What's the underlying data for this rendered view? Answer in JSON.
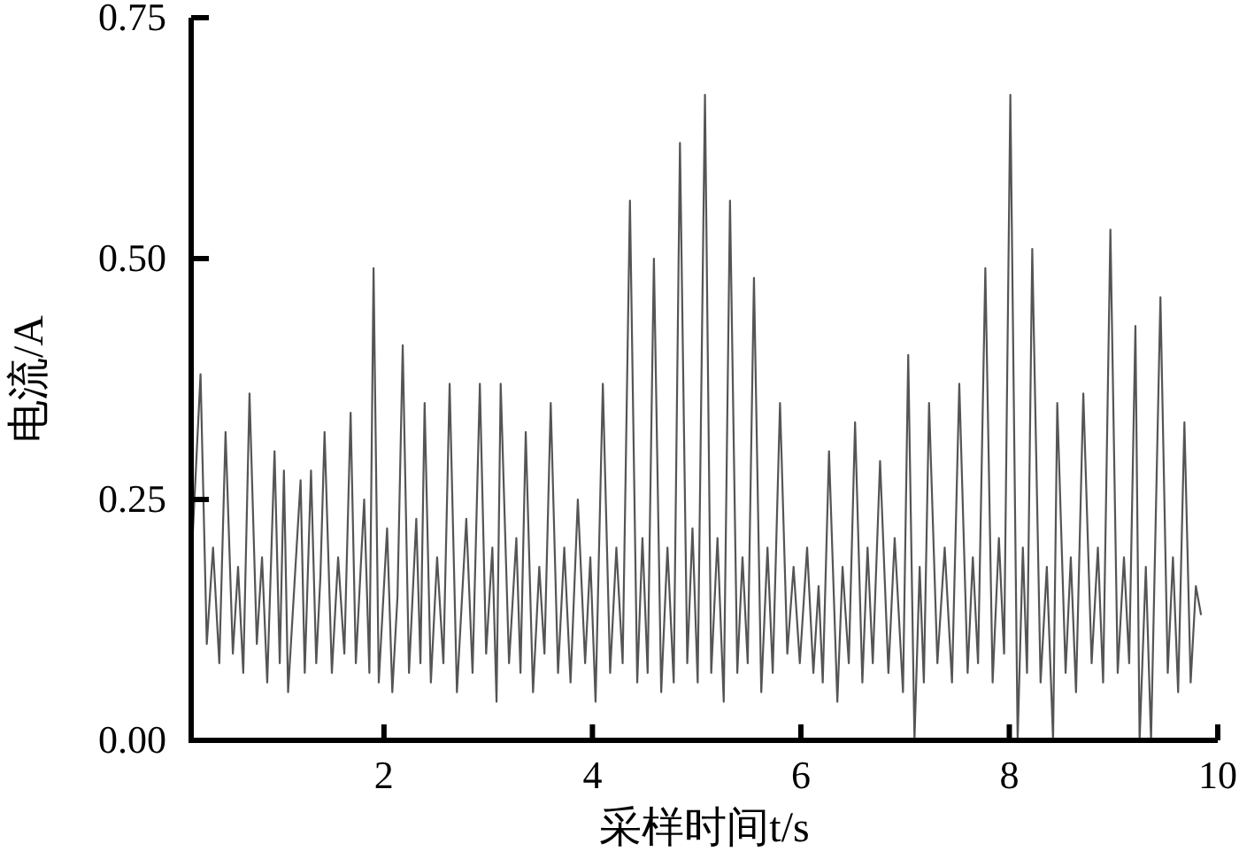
{
  "chart_data": {
    "type": "line",
    "xlabel": "采样时间t/s",
    "ylabel": "电流/A",
    "xlim": [
      0.15,
      10
    ],
    "ylim": [
      0,
      0.75
    ],
    "xticks": [
      2,
      4,
      6,
      8,
      10
    ],
    "yticks": [
      {
        "value": 0,
        "label": "0.00"
      },
      {
        "value": 0.25,
        "label": "0.25"
      },
      {
        "value": 0.5,
        "label": "0.50"
      },
      {
        "value": 0.75,
        "label": "0.75"
      }
    ],
    "x": [
      0.15,
      0.24,
      0.3,
      0.36,
      0.42,
      0.48,
      0.55,
      0.6,
      0.65,
      0.71,
      0.78,
      0.83,
      0.88,
      0.95,
      1.0,
      1.04,
      1.08,
      1.14,
      1.2,
      1.24,
      1.3,
      1.35,
      1.39,
      1.43,
      1.5,
      1.56,
      1.62,
      1.68,
      1.73,
      1.81,
      1.86,
      1.9,
      1.95,
      2.03,
      2.08,
      2.13,
      2.18,
      2.24,
      2.31,
      2.35,
      2.39,
      2.45,
      2.51,
      2.57,
      2.63,
      2.7,
      2.79,
      2.85,
      2.92,
      2.98,
      3.04,
      3.08,
      3.12,
      3.2,
      3.27,
      3.31,
      3.36,
      3.43,
      3.49,
      3.54,
      3.6,
      3.67,
      3.73,
      3.79,
      3.86,
      3.93,
      3.98,
      4.03,
      4.1,
      4.17,
      4.23,
      4.29,
      4.36,
      4.43,
      4.48,
      4.53,
      4.59,
      4.66,
      4.72,
      4.78,
      4.84,
      4.91,
      4.96,
      5.01,
      5.08,
      5.14,
      5.2,
      5.26,
      5.32,
      5.39,
      5.44,
      5.49,
      5.55,
      5.62,
      5.68,
      5.73,
      5.8,
      5.87,
      5.93,
      5.99,
      6.06,
      6.12,
      6.17,
      6.21,
      6.27,
      6.35,
      6.4,
      6.46,
      6.52,
      6.59,
      6.64,
      6.69,
      6.76,
      6.84,
      6.9,
      6.98,
      7.03,
      7.09,
      7.14,
      7.18,
      7.23,
      7.31,
      7.38,
      7.45,
      7.52,
      7.6,
      7.65,
      7.7,
      7.77,
      7.84,
      7.9,
      7.95,
      8.01,
      8.08,
      8.13,
      8.17,
      8.22,
      8.3,
      8.36,
      8.42,
      8.46,
      8.54,
      8.59,
      8.64,
      8.71,
      8.79,
      8.85,
      8.9,
      8.97,
      9.04,
      9.1,
      9.15,
      9.21,
      9.25,
      9.31,
      9.36,
      9.45,
      9.52,
      9.57,
      9.62,
      9.68,
      9.74,
      9.79,
      9.84
    ],
    "series": [
      {
        "color": "#555555",
        "values": [
          0.18,
          0.38,
          0.1,
          0.2,
          0.08,
          0.32,
          0.09,
          0.18,
          0.07,
          0.36,
          0.1,
          0.19,
          0.06,
          0.3,
          0.08,
          0.28,
          0.05,
          0.16,
          0.27,
          0.07,
          0.28,
          0.08,
          0.17,
          0.32,
          0.07,
          0.19,
          0.09,
          0.34,
          0.08,
          0.25,
          0.07,
          0.49,
          0.06,
          0.22,
          0.05,
          0.15,
          0.41,
          0.07,
          0.23,
          0.08,
          0.35,
          0.06,
          0.19,
          0.08,
          0.37,
          0.05,
          0.23,
          0.07,
          0.37,
          0.09,
          0.2,
          0.04,
          0.37,
          0.08,
          0.21,
          0.07,
          0.32,
          0.05,
          0.18,
          0.09,
          0.35,
          0.07,
          0.2,
          0.06,
          0.25,
          0.08,
          0.19,
          0.04,
          0.37,
          0.07,
          0.2,
          0.08,
          0.56,
          0.06,
          0.21,
          0.07,
          0.5,
          0.05,
          0.2,
          0.06,
          0.62,
          0.08,
          0.22,
          0.06,
          0.67,
          0.07,
          0.21,
          0.04,
          0.56,
          0.07,
          0.19,
          0.08,
          0.48,
          0.05,
          0.2,
          0.07,
          0.35,
          0.09,
          0.18,
          0.08,
          0.2,
          0.07,
          0.16,
          0.06,
          0.3,
          0.04,
          0.18,
          0.08,
          0.33,
          0.06,
          0.2,
          0.08,
          0.29,
          0.07,
          0.21,
          0.05,
          0.4,
          0.0,
          0.18,
          0.06,
          0.35,
          0.08,
          0.2,
          0.06,
          0.37,
          0.07,
          0.19,
          0.08,
          0.49,
          0.06,
          0.21,
          0.09,
          0.67,
          0.0,
          0.2,
          0.07,
          0.51,
          0.06,
          0.18,
          0.0,
          0.35,
          0.07,
          0.19,
          0.05,
          0.36,
          0.08,
          0.2,
          0.06,
          0.53,
          0.07,
          0.19,
          0.08,
          0.43,
          0.0,
          0.18,
          0.0,
          0.46,
          0.07,
          0.19,
          0.05,
          0.33,
          0.06,
          0.16,
          0.13
        ]
      }
    ]
  }
}
